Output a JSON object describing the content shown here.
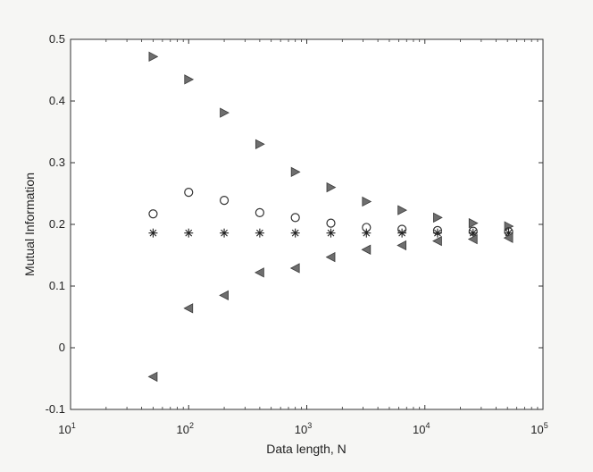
{
  "chart_data": {
    "type": "scatter",
    "title": "",
    "xlabel": "Data length, N",
    "ylabel": "Mutual Information",
    "xscale": "log",
    "xlim": [
      10,
      100000
    ],
    "ylim": [
      -0.1,
      0.5
    ],
    "grid": false,
    "legend": "none",
    "x_ticks": [
      {
        "base": "10",
        "exp": "1",
        "value": 10
      },
      {
        "base": "10",
        "exp": "2",
        "value": 100
      },
      {
        "base": "10",
        "exp": "3",
        "value": 1000
      },
      {
        "base": "10",
        "exp": "4",
        "value": 10000
      },
      {
        "base": "10",
        "exp": "5",
        "value": 100000
      }
    ],
    "y_ticks": [
      {
        "label": "-0.1",
        "value": -0.1
      },
      {
        "label": "0",
        "value": 0
      },
      {
        "label": "0.1",
        "value": 0.1
      },
      {
        "label": "0.2",
        "value": 0.2
      },
      {
        "label": "0.3",
        "value": 0.3
      },
      {
        "label": "0.4",
        "value": 0.4
      },
      {
        "label": "0.5",
        "value": 0.5
      }
    ],
    "x": [
      50,
      100,
      200,
      400,
      800,
      1600,
      3200,
      6400,
      12800,
      25600,
      51200
    ],
    "series": [
      {
        "marker": "triangle-right",
        "color": "#6e6e6e",
        "values": [
          0.472,
          0.435,
          0.381,
          0.33,
          0.285,
          0.26,
          0.237,
          0.223,
          0.211,
          0.202,
          0.197
        ]
      },
      {
        "marker": "circle",
        "color": "#333333",
        "values": [
          0.217,
          0.252,
          0.239,
          0.219,
          0.211,
          0.202,
          0.195,
          0.192,
          0.19,
          0.189,
          0.188
        ]
      },
      {
        "marker": "asterisk",
        "color": "#222222",
        "values": [
          0.186,
          0.186,
          0.186,
          0.186,
          0.186,
          0.186,
          0.186,
          0.186,
          0.186,
          0.186,
          0.186
        ]
      },
      {
        "marker": "triangle-left",
        "color": "#6e6e6e",
        "values": [
          -0.047,
          0.064,
          0.085,
          0.122,
          0.129,
          0.147,
          0.159,
          0.166,
          0.173,
          0.176,
          0.178
        ]
      }
    ]
  }
}
